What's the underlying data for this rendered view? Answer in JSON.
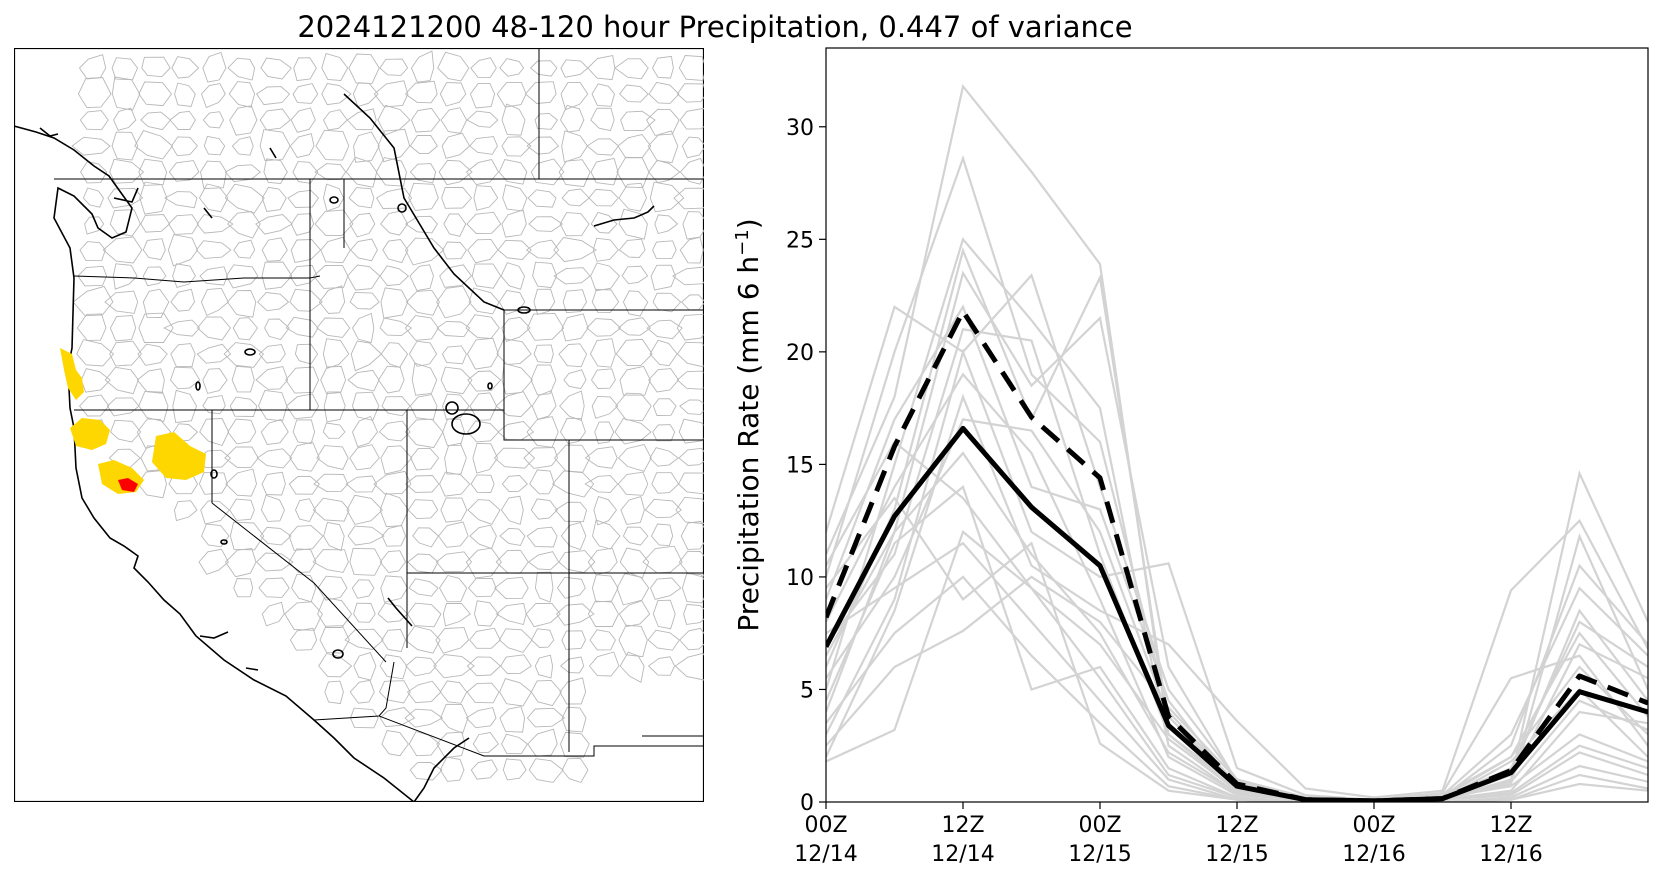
{
  "title": "2024121200 48-120 hour Precipitation, 0.447 of variance",
  "map": {
    "description_layers": [
      "basin-boundaries",
      "state-boundaries",
      "coastline"
    ],
    "colors": {
      "basin_line": "#b8b8b8",
      "state_line": "#000000",
      "coast_line": "#000000",
      "highlight_yellow": "#ffd700",
      "highlight_red": "#ff0000"
    }
  },
  "chart_data": {
    "type": "line",
    "xlabel": "",
    "ylabel": "Precipitation Rate (mm 6 h",
    "ylabel_sup": "−1",
    "ylabel_end": ")",
    "ylim": [
      0,
      33.5
    ],
    "xlim": [
      0,
      18
    ],
    "yticks": [
      0,
      5,
      10,
      15,
      20,
      25,
      30
    ],
    "xticks": [
      {
        "x": 0,
        "line1": "00Z",
        "line2": "12/14"
      },
      {
        "x": 3,
        "line1": "12Z",
        "line2": "12/14"
      },
      {
        "x": 6,
        "line1": "00Z",
        "line2": "12/15"
      },
      {
        "x": 9,
        "line1": "12Z",
        "line2": "12/15"
      },
      {
        "x": 12,
        "line1": "00Z",
        "line2": "12/16"
      },
      {
        "x": 15,
        "line1": "12Z",
        "line2": "12/16"
      }
    ],
    "grid": false,
    "x": [
      0,
      1.5,
      3,
      4.5,
      6,
      7.5,
      9,
      10.5,
      12,
      13.5,
      15,
      16.5,
      18
    ],
    "colors": {
      "ensemble": "#d3d3d3",
      "mean": "#000000",
      "dashed": "#000000"
    },
    "series": [
      {
        "style": "solid-thick",
        "values": [
          6.9,
          12.7,
          16.6,
          13.1,
          10.5,
          3.4,
          0.7,
          0.1,
          0.05,
          0.15,
          1.3,
          4.9,
          4.0
        ]
      },
      {
        "style": "dashed-thick",
        "values": [
          8.2,
          15.8,
          21.8,
          17.1,
          14.4,
          3.8,
          0.8,
          0.1,
          0.05,
          0.15,
          1.4,
          5.6,
          4.4
        ]
      }
    ],
    "ensemble": [
      [
        12.0,
        22.0,
        20.0,
        23.4,
        14.0,
        5.0,
        1.0,
        0.2,
        0.1,
        0.2,
        2.0,
        6.0,
        3.0
      ],
      [
        11.0,
        18.0,
        31.8,
        28.0,
        23.9,
        3.0,
        0.5,
        0.1,
        0.0,
        0.1,
        1.0,
        14.6,
        8.0
      ],
      [
        10.0,
        20.0,
        28.6,
        19.0,
        16.0,
        4.0,
        0.8,
        0.1,
        0.0,
        0.2,
        1.5,
        8.0,
        6.0
      ],
      [
        5.0,
        15.0,
        25.0,
        21.4,
        17.5,
        2.5,
        0.4,
        0.1,
        0.0,
        0.1,
        0.8,
        11.8,
        5.0
      ],
      [
        6.0,
        13.0,
        24.5,
        17.0,
        23.3,
        3.5,
        0.6,
        0.2,
        0.0,
        0.2,
        2.5,
        10.5,
        7.0
      ],
      [
        4.0,
        12.0,
        23.5,
        18.5,
        21.5,
        6.0,
        0.9,
        0.2,
        0.1,
        0.3,
        3.0,
        9.5,
        6.5
      ],
      [
        9.0,
        17.0,
        22.0,
        14.0,
        13.0,
        4.5,
        0.6,
        0.1,
        0.0,
        0.1,
        1.0,
        7.0,
        5.5
      ],
      [
        7.0,
        11.0,
        21.0,
        20.5,
        11.0,
        3.0,
        0.7,
        0.1,
        0.0,
        0.1,
        1.2,
        8.5,
        4.5
      ],
      [
        3.0,
        9.0,
        20.0,
        12.0,
        10.0,
        10.6,
        1.5,
        0.3,
        0.1,
        0.4,
        5.5,
        6.5,
        2.5
      ],
      [
        8.0,
        14.0,
        19.0,
        15.5,
        9.0,
        2.0,
        0.3,
        0.1,
        0.0,
        0.1,
        0.5,
        4.0,
        3.5
      ],
      [
        2.0,
        8.5,
        18.0,
        10.5,
        8.5,
        7.0,
        3.6,
        0.6,
        0.2,
        0.5,
        9.4,
        12.5,
        6.8
      ],
      [
        5.5,
        10.0,
        17.0,
        16.5,
        12.0,
        3.8,
        0.7,
        0.1,
        0.0,
        0.1,
        1.8,
        5.0,
        2.0
      ],
      [
        6.5,
        12.0,
        15.5,
        11.0,
        7.5,
        2.2,
        0.4,
        0.1,
        0.0,
        0.2,
        0.7,
        3.0,
        1.8
      ],
      [
        4.5,
        11.5,
        14.0,
        5.0,
        6.0,
        1.5,
        0.2,
        0.0,
        0.0,
        0.1,
        0.4,
        2.5,
        1.5
      ],
      [
        1.8,
        3.2,
        12.0,
        9.5,
        5.5,
        1.2,
        0.2,
        0.0,
        0.0,
        0.1,
        0.3,
        2.2,
        1.2
      ],
      [
        7.5,
        9.5,
        11.5,
        8.0,
        4.5,
        1.0,
        0.1,
        0.0,
        0.0,
        0.0,
        0.2,
        1.6,
        0.9
      ],
      [
        3.5,
        7.5,
        10.0,
        6.5,
        3.5,
        0.7,
        0.1,
        0.0,
        0.0,
        0.0,
        0.1,
        1.2,
        0.6
      ],
      [
        10.5,
        16.0,
        13.5,
        9.5,
        7.0,
        2.8,
        0.5,
        0.1,
        0.0,
        0.1,
        0.9,
        4.5,
        3.2
      ],
      [
        9.5,
        13.5,
        9.0,
        11.5,
        2.6,
        0.5,
        0.1,
        0.0,
        0.0,
        0.0,
        0.1,
        0.8,
        0.5
      ],
      [
        2.5,
        6.0,
        7.6,
        10.0,
        8.0,
        4.2,
        1.0,
        0.2,
        0.1,
        0.3,
        2.0,
        7.5,
        3.8
      ]
    ]
  }
}
